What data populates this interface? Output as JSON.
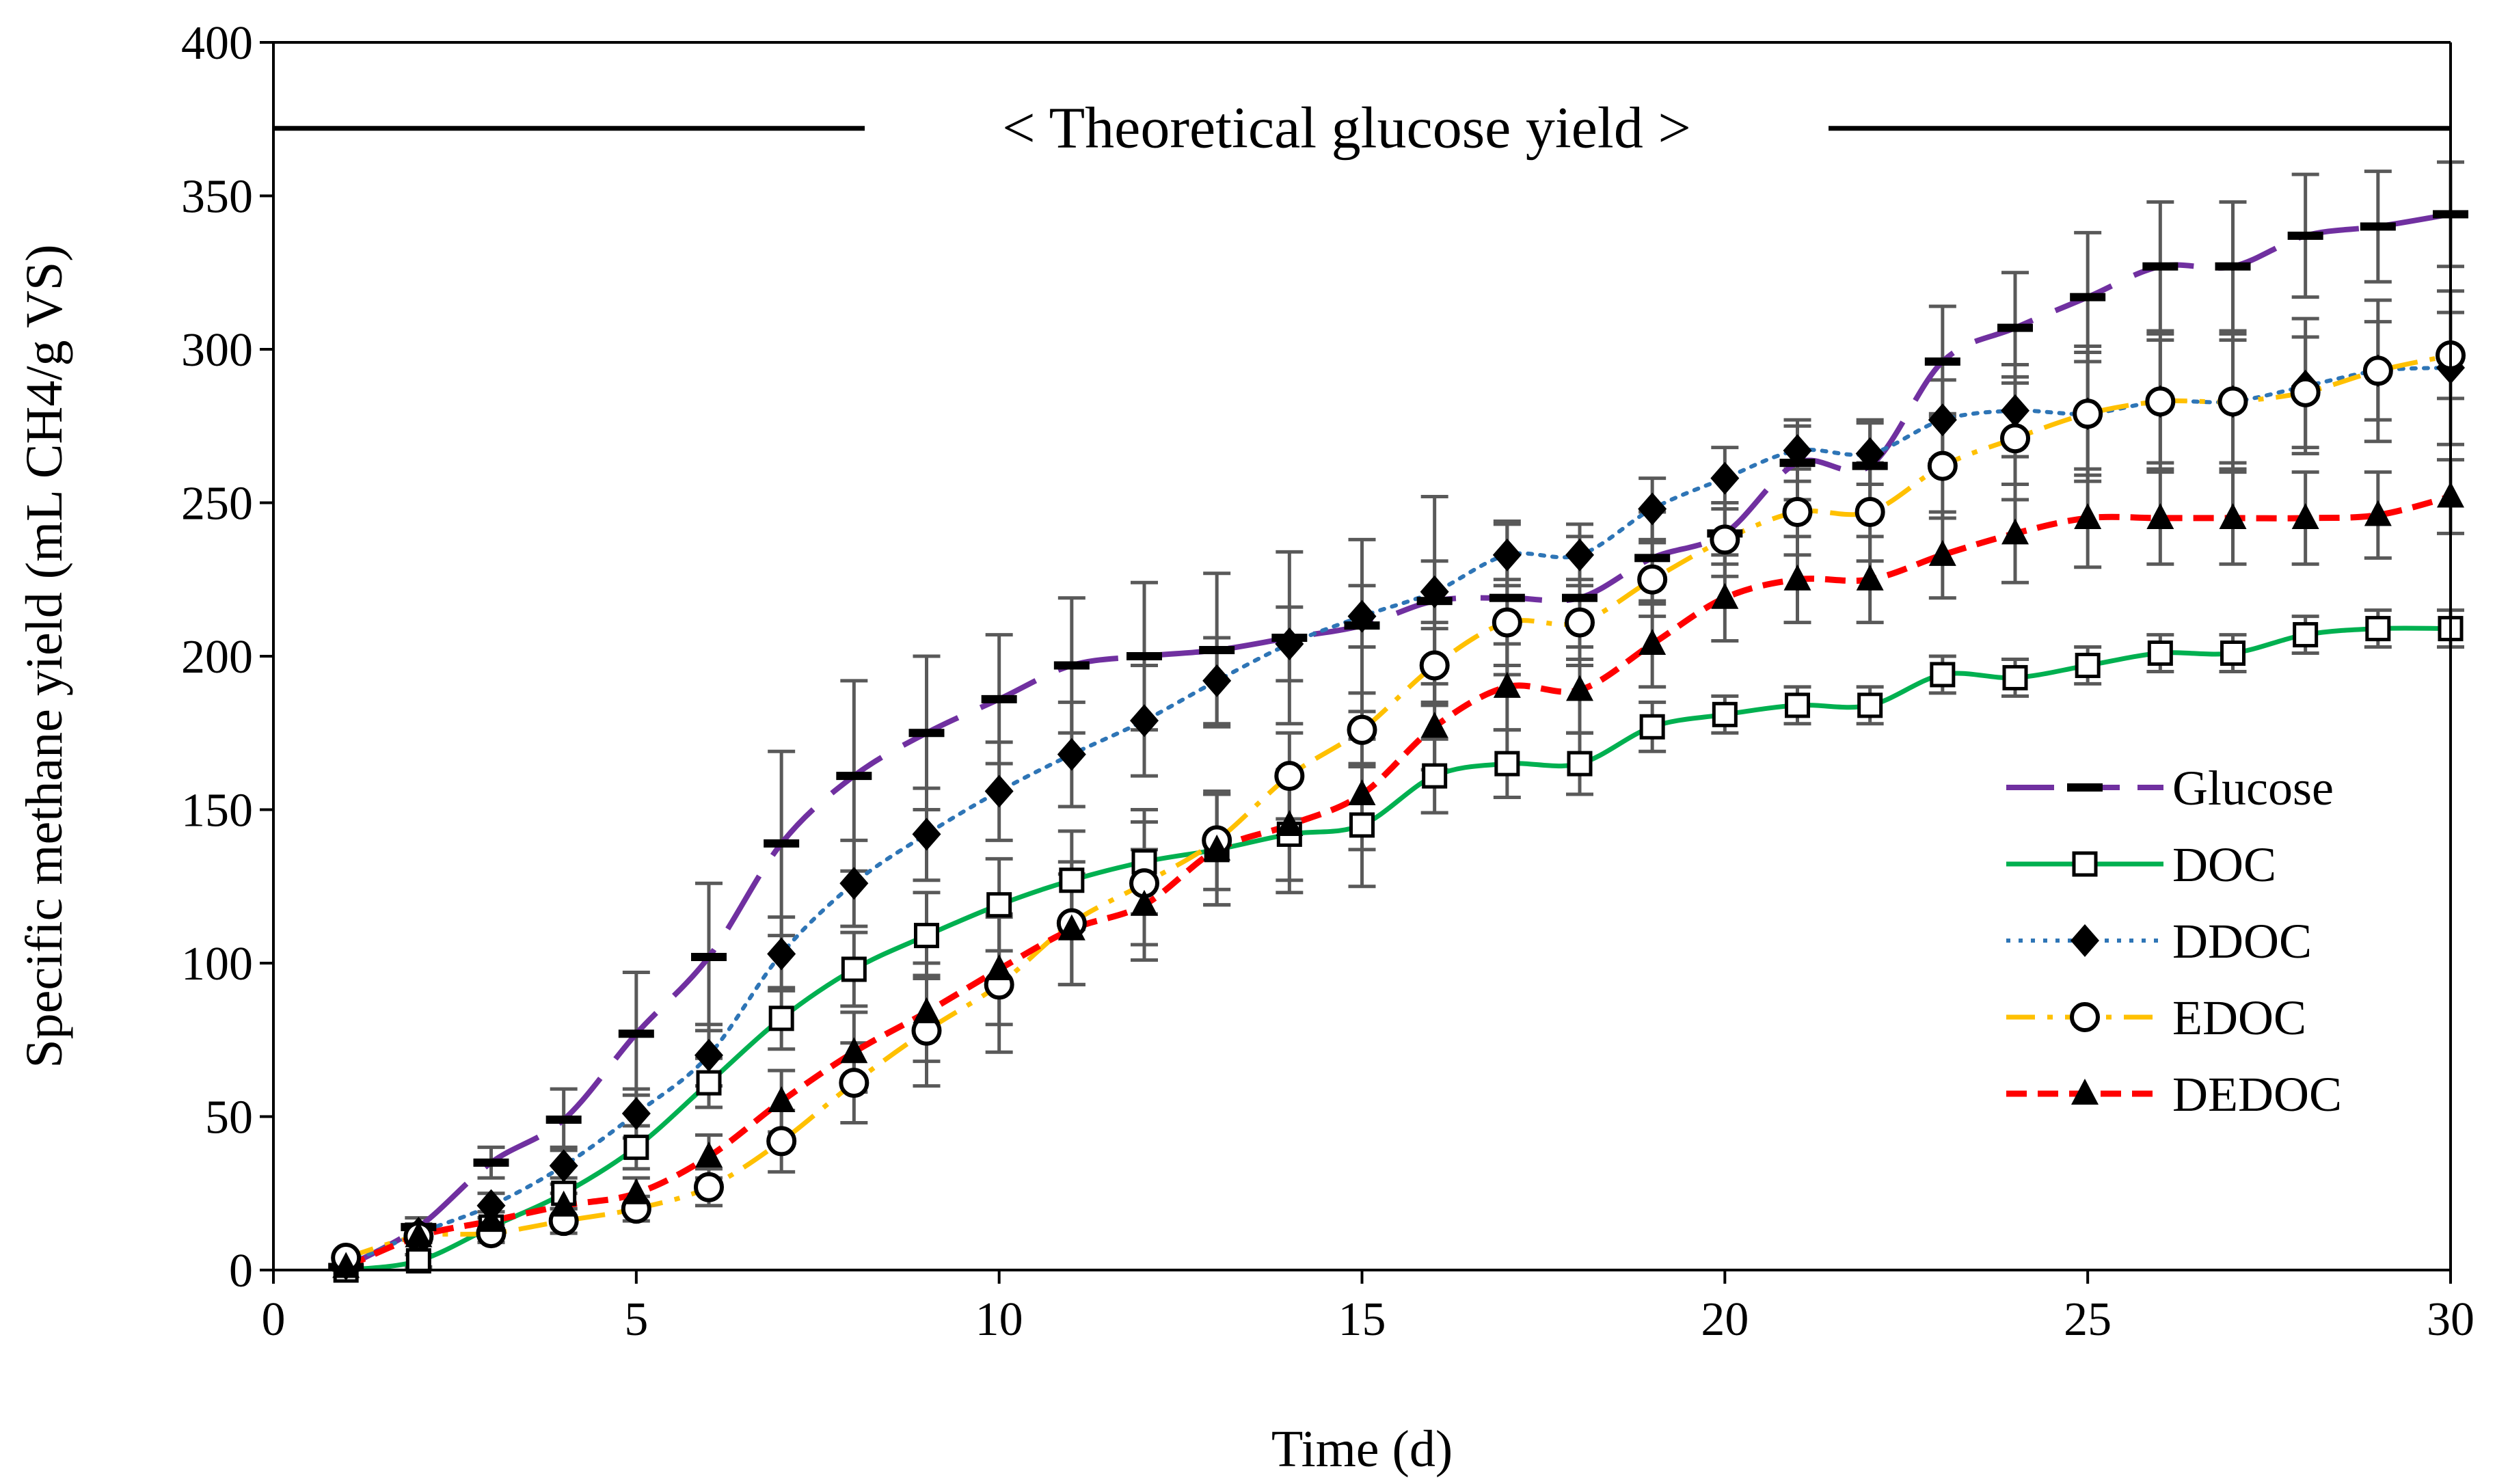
{
  "chart_data": {
    "type": "line",
    "title": "",
    "xlabel": "Time (d)",
    "ylabel": "Specific methane yield (mL CH4/g VS)",
    "xlim": [
      0,
      30
    ],
    "ylim": [
      0,
      400
    ],
    "xticks": [
      0,
      5,
      10,
      15,
      20,
      25,
      30
    ],
    "yticks": [
      0,
      50,
      100,
      150,
      200,
      250,
      300,
      350,
      400
    ],
    "grid": false,
    "legend_position": "right",
    "reference_line": {
      "y": 372,
      "label": "< Theoretical glucose yield >"
    },
    "x": [
      1,
      2,
      3,
      4,
      5,
      6,
      7,
      8,
      9,
      10,
      11,
      12,
      13,
      14,
      15,
      16,
      17,
      18,
      19,
      20,
      21,
      22,
      23,
      24,
      25,
      26,
      27,
      28,
      29,
      30
    ],
    "series": [
      {
        "name": "Glucose",
        "color": "#7030a0",
        "marker": "dash",
        "line": "longdash",
        "values": [
          1,
          14,
          35,
          49,
          77,
          102,
          139,
          161,
          175,
          186,
          197,
          200,
          202,
          206,
          210,
          218,
          219,
          219,
          232,
          240,
          263,
          262,
          296,
          307,
          317,
          327,
          327,
          337,
          340,
          344
        ],
        "errors": [
          1,
          3,
          5,
          10,
          20,
          24,
          30,
          31,
          25,
          21,
          22,
          24,
          25,
          28,
          28,
          34,
          25,
          20,
          15,
          10,
          12,
          15,
          18,
          18,
          21,
          21,
          21,
          20,
          18,
          17
        ]
      },
      {
        "name": "DOC",
        "color": "#00b050",
        "marker": "square",
        "line": "solid",
        "values": [
          0,
          3,
          14,
          25,
          40,
          61,
          82,
          98,
          109,
          119,
          127,
          133,
          137,
          142,
          145,
          161,
          165,
          165,
          177,
          181,
          184,
          184,
          194,
          193,
          197,
          201,
          201,
          207,
          209,
          209
        ],
        "errors": [
          0,
          2,
          3,
          5,
          7,
          8,
          10,
          12,
          14,
          15,
          16,
          17,
          18,
          19,
          20,
          12,
          11,
          10,
          8,
          6,
          6,
          6,
          6,
          6,
          6,
          6,
          6,
          6,
          6,
          6
        ]
      },
      {
        "name": "DDOC",
        "color": "#2e75b6",
        "marker": "diamond",
        "line": "dotted",
        "values": [
          2,
          12,
          21,
          34,
          51,
          70,
          103,
          126,
          142,
          156,
          168,
          179,
          192,
          204,
          213,
          221,
          233,
          233,
          248,
          258,
          267,
          266,
          277,
          280,
          279,
          283,
          283,
          288,
          293,
          294
        ],
        "errors": [
          1,
          3,
          4,
          6,
          8,
          10,
          12,
          14,
          15,
          16,
          17,
          18,
          14,
          12,
          10,
          10,
          10,
          10,
          10,
          10,
          10,
          10,
          13,
          15,
          22,
          22,
          22,
          22,
          23,
          25
        ]
      },
      {
        "name": "EDOC",
        "color": "#ffc000",
        "marker": "circle",
        "line": "dashdot",
        "values": [
          4,
          11,
          12,
          16,
          20,
          27,
          42,
          61,
          78,
          93,
          113,
          126,
          140,
          161,
          176,
          197,
          211,
          211,
          225,
          238,
          247,
          247,
          262,
          271,
          279,
          283,
          283,
          286,
          293,
          298
        ],
        "errors": [
          1,
          2,
          3,
          4,
          4,
          6,
          10,
          13,
          18,
          22,
          20,
          20,
          16,
          14,
          12,
          12,
          14,
          14,
          12,
          12,
          14,
          16,
          17,
          20,
          20,
          20,
          20,
          18,
          16,
          14
        ]
      },
      {
        "name": "DEDOC",
        "color": "#ff0000",
        "marker": "triangle",
        "line": "dashed",
        "values": [
          1,
          11,
          16,
          21,
          25,
          37,
          55,
          71,
          84,
          98,
          111,
          119,
          137,
          145,
          155,
          177,
          190,
          189,
          204,
          219,
          225,
          225,
          233,
          240,
          245,
          245,
          245,
          245,
          246,
          252
        ],
        "errors": [
          1,
          2,
          3,
          4,
          5,
          7,
          10,
          13,
          16,
          18,
          18,
          18,
          18,
          18,
          18,
          14,
          14,
          14,
          14,
          14,
          14,
          14,
          14,
          16,
          16,
          15,
          15,
          15,
          14,
          12
        ]
      }
    ]
  }
}
